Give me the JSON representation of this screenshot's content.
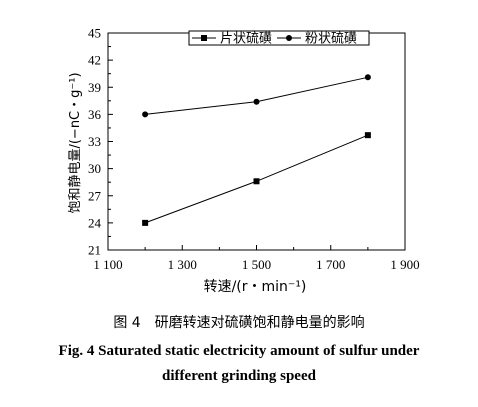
{
  "chart_data": {
    "type": "line",
    "xlabel": "转速/(r・min⁻¹)",
    "ylabel": "饱和静电量/(−nC・g⁻¹)",
    "xlim": [
      1100,
      1900
    ],
    "ylim": [
      21,
      45
    ],
    "xticks": [
      1100,
      1300,
      1500,
      1700,
      1900
    ],
    "xtick_labels": [
      "1 100",
      "1 300",
      "1 500",
      "1 700",
      "1 900"
    ],
    "yticks": [
      21,
      24,
      27,
      30,
      33,
      36,
      39,
      42,
      45
    ],
    "ytick_labels": [
      "21",
      "24",
      "27",
      "30",
      "33",
      "36",
      "39",
      "42",
      "45"
    ],
    "legend_position": "top-right",
    "series": [
      {
        "name": "片状硫磺",
        "marker": "square",
        "x": [
          1200,
          1500,
          1800
        ],
        "y": [
          24.0,
          28.6,
          33.7
        ]
      },
      {
        "name": "粉状硫磺",
        "marker": "circle",
        "x": [
          1200,
          1500,
          1800
        ],
        "y": [
          36.0,
          37.4,
          40.1
        ]
      }
    ]
  },
  "caption": {
    "cn": "图 4　研磨转速对硫磺饱和静电量的影响",
    "en_line1": "Fig. 4   Saturated static electricity amount of sulfur under",
    "en_line2": "different grinding speed"
  }
}
